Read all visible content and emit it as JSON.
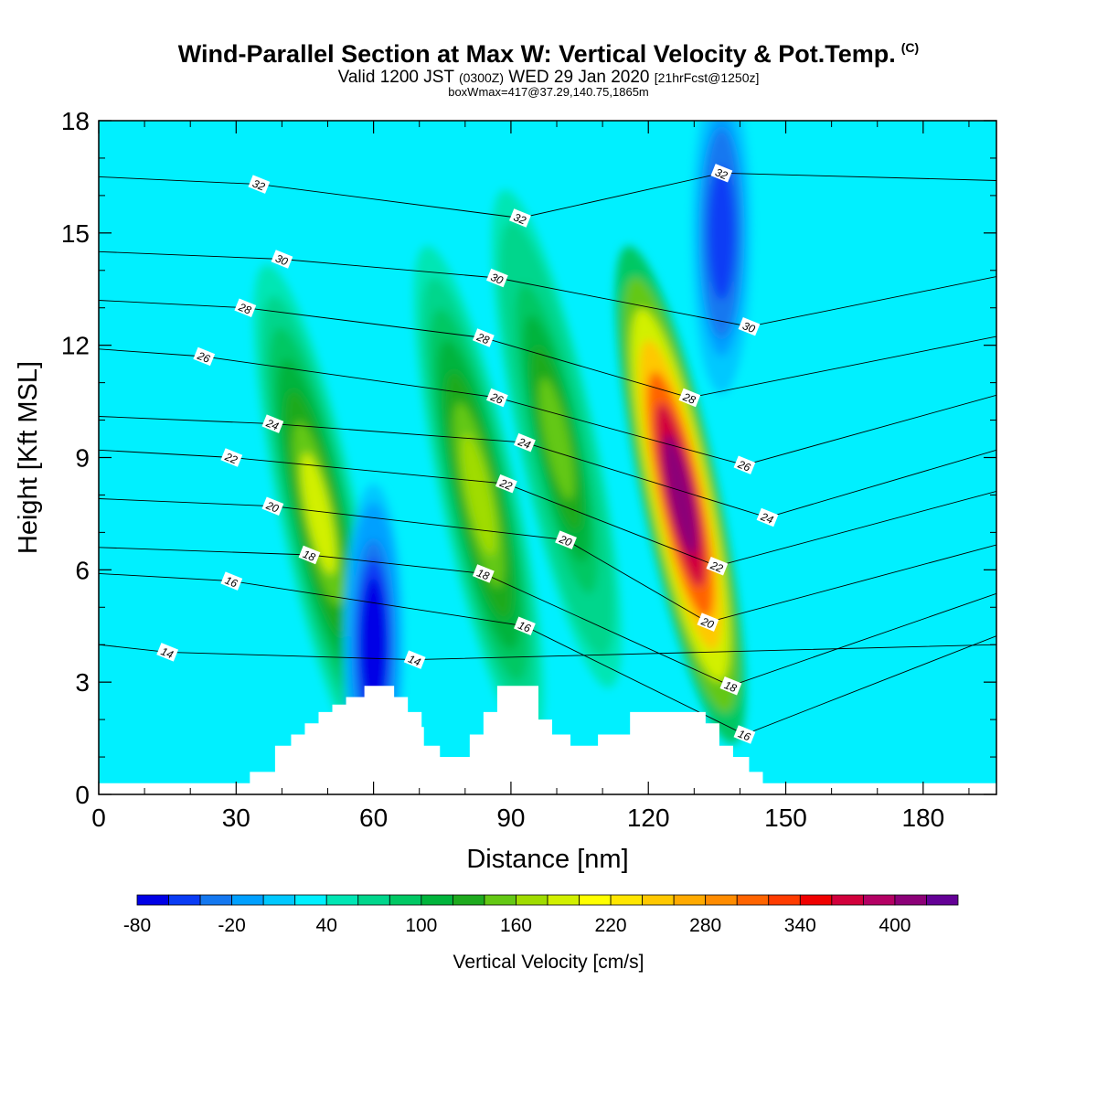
{
  "header": {
    "title": "Wind-Parallel Section at Max W: Vertical Velocity & Pot.Temp.",
    "copyright": "(C)",
    "valid_prefix": "Valid 1200 JST",
    "valid_zulu": "(0300Z)",
    "valid_date": "WED 29 Jan 2020",
    "forecast": "[21hrFcst@1250z]",
    "box_info": "boxWmax=417@37.29,140.75,1865m"
  },
  "chart_data": {
    "type": "heatmap",
    "xlabel": "Distance [nm]",
    "ylabel": "Height [Kft MSL]",
    "xlim": [
      0,
      196
    ],
    "ylim": [
      0,
      18
    ],
    "x_ticks": [
      0,
      30,
      60,
      90,
      120,
      150,
      180
    ],
    "y_ticks": [
      0,
      3,
      6,
      9,
      12,
      15,
      18
    ],
    "colorbar": {
      "label": "Vertical Velocity [cm/s]",
      "levels": [
        -80,
        -60,
        -40,
        -20,
        0,
        20,
        40,
        60,
        80,
        100,
        120,
        140,
        160,
        180,
        200,
        220,
        240,
        260,
        280,
        300,
        320,
        340,
        360,
        380,
        400,
        420
      ],
      "tick_labels": [
        -80,
        -20,
        40,
        100,
        160,
        220,
        280,
        340,
        400
      ],
      "colors": [
        "#0000e6",
        "#0a3cf5",
        "#1478f0",
        "#00a0ff",
        "#00c8ff",
        "#00f0ff",
        "#00e6b4",
        "#00d68c",
        "#00c864",
        "#00b43c",
        "#1eaa1e",
        "#64c814",
        "#a0dc00",
        "#d2f000",
        "#ffff00",
        "#ffe600",
        "#ffc800",
        "#ffaa00",
        "#ff8c00",
        "#ff6400",
        "#ff3c00",
        "#f00000",
        "#d2003c",
        "#b40064",
        "#8c0078",
        "#640096"
      ]
    },
    "vertical_velocity_updrafts": [
      {
        "x": 48,
        "z": 7.5,
        "w_max": 180
      },
      {
        "x": 83,
        "z": 8,
        "w_max": 160
      },
      {
        "x": 100,
        "z": 9.5,
        "w_max": 140
      },
      {
        "x": 127,
        "z": 8,
        "w_max": 417
      }
    ],
    "vertical_velocity_downdrafts": [
      {
        "x": 60,
        "z": 4,
        "w_min": -80
      },
      {
        "x": 136,
        "z": 15,
        "w_min": -60
      }
    ],
    "theta_contour_labels": [
      {
        "x": 15,
        "z": 3.8,
        "value": 14
      },
      {
        "x": 69,
        "z": 3.6,
        "value": 14
      },
      {
        "x": 29,
        "z": 5.7,
        "value": 16
      },
      {
        "x": 93,
        "z": 4.5,
        "value": 16
      },
      {
        "x": 141,
        "z": 1.6,
        "value": 16
      },
      {
        "x": 46,
        "z": 6.4,
        "value": 18
      },
      {
        "x": 84,
        "z": 5.9,
        "value": 18
      },
      {
        "x": 138,
        "z": 2.9,
        "value": 18
      },
      {
        "x": 38,
        "z": 7.7,
        "value": 20
      },
      {
        "x": 102,
        "z": 6.8,
        "value": 20
      },
      {
        "x": 133,
        "z": 4.6,
        "value": 20
      },
      {
        "x": 29,
        "z": 9,
        "value": 22
      },
      {
        "x": 89,
        "z": 8.3,
        "value": 22
      },
      {
        "x": 135,
        "z": 6.1,
        "value": 22
      },
      {
        "x": 38,
        "z": 9.9,
        "value": 24
      },
      {
        "x": 93,
        "z": 9.4,
        "value": 24
      },
      {
        "x": 146,
        "z": 7.4,
        "value": 24
      },
      {
        "x": 23,
        "z": 11.7,
        "value": 26
      },
      {
        "x": 87,
        "z": 10.6,
        "value": 26
      },
      {
        "x": 141,
        "z": 8.8,
        "value": 26
      },
      {
        "x": 32,
        "z": 13,
        "value": 28
      },
      {
        "x": 84,
        "z": 12.2,
        "value": 28
      },
      {
        "x": 129,
        "z": 10.6,
        "value": 28
      },
      {
        "x": 40,
        "z": 14.3,
        "value": 30
      },
      {
        "x": 87,
        "z": 13.8,
        "value": 30
      },
      {
        "x": 142,
        "z": 12.5,
        "value": 30
      },
      {
        "x": 35,
        "z": 16.3,
        "value": 32
      },
      {
        "x": 92,
        "z": 15.4,
        "value": 32
      },
      {
        "x": 136,
        "z": 16.6,
        "value": 32
      }
    ],
    "terrain_profile": [
      {
        "x": 30,
        "z": 0.3
      },
      {
        "x": 33,
        "z": 0.6
      },
      {
        "x": 38.5,
        "z": 1.3
      },
      {
        "x": 42,
        "z": 1.6
      },
      {
        "x": 45,
        "z": 1.9
      },
      {
        "x": 48,
        "z": 2.2
      },
      {
        "x": 51,
        "z": 2.4
      },
      {
        "x": 54,
        "z": 2.6
      },
      {
        "x": 58,
        "z": 2.9
      },
      {
        "x": 64.5,
        "z": 2.6
      },
      {
        "x": 67.5,
        "z": 2.2
      },
      {
        "x": 70.5,
        "z": 1.8
      },
      {
        "x": 71,
        "z": 1.3
      },
      {
        "x": 74.5,
        "z": 1.0
      },
      {
        "x": 81,
        "z": 1.6
      },
      {
        "x": 84,
        "z": 2.2
      },
      {
        "x": 87,
        "z": 2.9
      },
      {
        "x": 96,
        "z": 2.0
      },
      {
        "x": 99,
        "z": 1.6
      },
      {
        "x": 103,
        "z": 1.3
      },
      {
        "x": 109,
        "z": 1.6
      },
      {
        "x": 116,
        "z": 2.2
      },
      {
        "x": 132.5,
        "z": 1.9
      },
      {
        "x": 135.5,
        "z": 1.3
      },
      {
        "x": 138.5,
        "z": 1.0
      },
      {
        "x": 142,
        "z": 0.6
      },
      {
        "x": 145,
        "z": 0.3
      }
    ]
  }
}
